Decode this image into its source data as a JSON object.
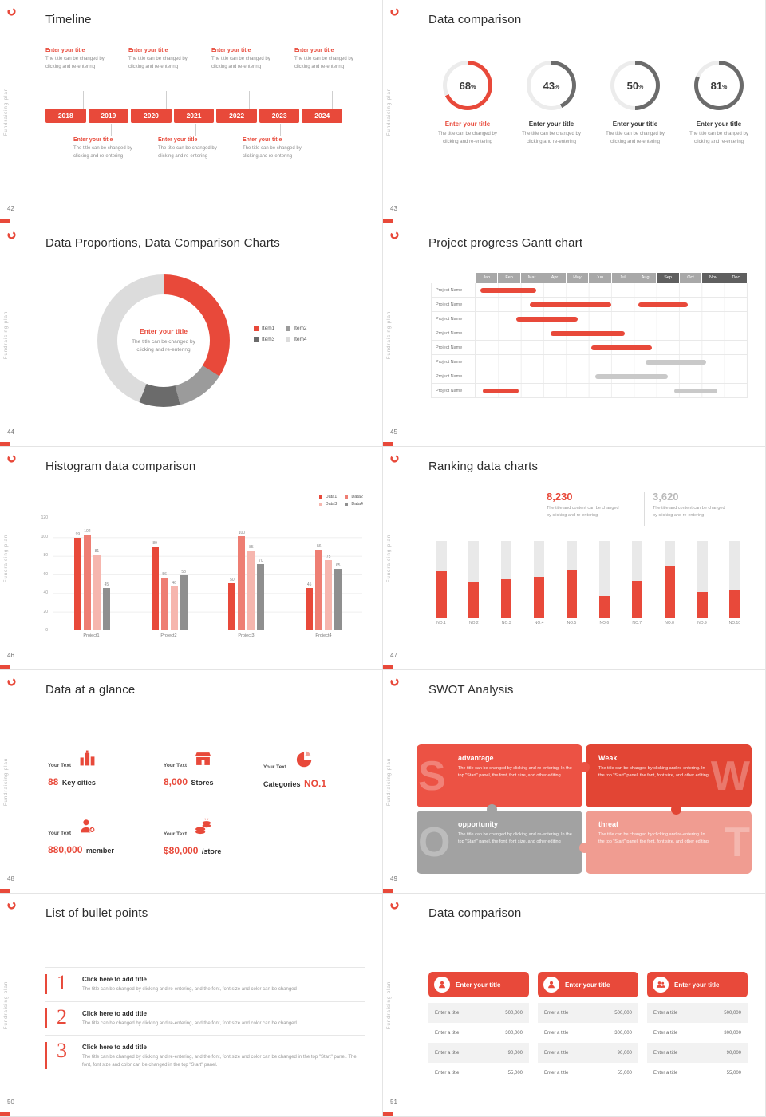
{
  "colors": {
    "red": "#e8493a",
    "gray_bar": "#c9c9c9",
    "gray_dark": "#6b6b6b"
  },
  "common": {
    "vertical_brand": "Fundraising plan",
    "entry_title": "Enter your title",
    "desc_l1": "The title can be changed by",
    "desc_l2": "clicking and re-entering"
  },
  "slides": {
    "timeline": {
      "page": "42",
      "title": "Timeline",
      "years": [
        "2018",
        "2019",
        "2020",
        "2021",
        "2022",
        "2023",
        "2024"
      ]
    },
    "rings": {
      "page": "43",
      "title": "Data comparison",
      "items": [
        {
          "value": "68",
          "unit": "%",
          "color": "#e8493a",
          "title_color": "#e8493a"
        },
        {
          "value": "43",
          "unit": "%",
          "color": "#6b6b6b",
          "title_color": "#333333"
        },
        {
          "value": "50",
          "unit": "%",
          "color": "#6b6b6b",
          "title_color": "#333333"
        },
        {
          "value": "81",
          "unit": "%",
          "color": "#6b6b6b",
          "title_color": "#333333"
        }
      ]
    },
    "donut": {
      "page": "44",
      "title": "Data Proportions, Data Comparison Charts",
      "segments": [
        {
          "label": "Item1",
          "color": "#e8493a",
          "value": 34
        },
        {
          "label": "Item2",
          "color": "#9b9b9b",
          "value": 12
        },
        {
          "label": "Item3",
          "color": "#6b6b6b",
          "value": 10
        },
        {
          "label": "Item4",
          "color": "#dcdcdc",
          "value": 44
        }
      ]
    },
    "gantt": {
      "page": "45",
      "title": "Project progress Gantt chart",
      "row_label": "Project Name",
      "months": [
        {
          "label": "Jan",
          "dark": false
        },
        {
          "label": "Feb",
          "dark": false
        },
        {
          "label": "Mar",
          "dark": false
        },
        {
          "label": "Apr",
          "dark": false
        },
        {
          "label": "May",
          "dark": false
        },
        {
          "label": "Jun",
          "dark": false
        },
        {
          "label": "Jul",
          "dark": false
        },
        {
          "label": "Aug",
          "dark": false
        },
        {
          "label": "Sep",
          "dark": true
        },
        {
          "label": "Oct",
          "dark": false
        },
        {
          "label": "Nov",
          "dark": true
        },
        {
          "label": "Dec",
          "dark": true
        }
      ],
      "rows": [
        {
          "bars": [
            {
              "start": 0.2,
              "end": 2.7,
              "color": "#e8493a"
            }
          ]
        },
        {
          "bars": [
            {
              "start": 2.4,
              "end": 6.0,
              "color": "#e8493a"
            },
            {
              "start": 7.2,
              "end": 9.4,
              "color": "#e8493a"
            }
          ]
        },
        {
          "bars": [
            {
              "start": 1.8,
              "end": 4.5,
              "color": "#e8493a"
            }
          ]
        },
        {
          "bars": [
            {
              "start": 3.3,
              "end": 6.6,
              "color": "#e8493a"
            }
          ]
        },
        {
          "bars": [
            {
              "start": 5.1,
              "end": 7.8,
              "color": "#e8493a"
            }
          ]
        },
        {
          "bars": [
            {
              "start": 7.5,
              "end": 10.2,
              "color": "#c9c9c9"
            }
          ]
        },
        {
          "bars": [
            {
              "start": 5.3,
              "end": 8.5,
              "color": "#c9c9c9"
            }
          ]
        },
        {
          "bars": [
            {
              "start": 0.3,
              "end": 1.9,
              "color": "#e8493a"
            },
            {
              "start": 8.8,
              "end": 10.7,
              "color": "#c9c9c9"
            }
          ]
        }
      ]
    },
    "histogram": {
      "page": "46",
      "title": "Histogram data comparison",
      "y_ticks": [
        "120",
        "100",
        "80",
        "60",
        "40",
        "20",
        "0"
      ],
      "y_max": 120,
      "legend": [
        {
          "label": "Data1",
          "color": "#e8493a"
        },
        {
          "label": "Data2",
          "color": "#ee7e73"
        },
        {
          "label": "Data3",
          "color": "#f6b6ae"
        },
        {
          "label": "Data4",
          "color": "#8f8f8f"
        }
      ],
      "groups": [
        {
          "label": "Project1",
          "values": [
            99,
            102,
            81,
            45
          ]
        },
        {
          "label": "Project2",
          "values": [
            89,
            56,
            46,
            58
          ]
        },
        {
          "label": "Project3",
          "values": [
            50,
            100,
            85,
            70
          ]
        },
        {
          "label": "Project4",
          "values": [
            45,
            86,
            75,
            65
          ]
        }
      ]
    },
    "ranking": {
      "page": "47",
      "title": "Ranking data charts",
      "stats": [
        {
          "value": "8,230",
          "color": "#e8493a",
          "d1": "The title and content can be changed",
          "d2": "by clicking and re-entering"
        },
        {
          "value": "3,620",
          "color": "#b9b9b9",
          "d1": "The title and content can be changed",
          "d2": "by clicking and re-entering"
        }
      ],
      "bars": [
        {
          "label": "NO.1",
          "value": 60
        },
        {
          "label": "NO.2",
          "value": 47
        },
        {
          "label": "NO.3",
          "value": 50
        },
        {
          "label": "NO.4",
          "value": 53
        },
        {
          "label": "NO.5",
          "value": 62
        },
        {
          "label": "NO.6",
          "value": 28
        },
        {
          "label": "NO.7",
          "value": 48
        },
        {
          "label": "NO.8",
          "value": 67
        },
        {
          "label": "NO.9",
          "value": 33
        },
        {
          "label": "NO.10",
          "value": 35
        }
      ]
    },
    "glance": {
      "page": "48",
      "title": "Data at a glance",
      "items": [
        {
          "label": "Your Text",
          "red": "88",
          "dark": "Key cities"
        },
        {
          "label": "Your Text",
          "red": "8,000",
          "dark": "Stores"
        },
        {
          "label": "Your Text",
          "dark": "Categories",
          "red": "NO.1"
        },
        {
          "label": "Your Text",
          "red": "880,000",
          "dark": "member"
        },
        {
          "label": "Your Text",
          "red": "$80,000",
          "dark": "/store"
        }
      ]
    },
    "swot": {
      "page": "49",
      "title": "SWOT Analysis",
      "desc": "The title can be changed by clicking and re-entering. In the top \"Start\" panel, the font, font size, and other editing",
      "pieces": [
        {
          "letter": "S",
          "title": "advantage",
          "color": "#ec5244"
        },
        {
          "letter": "W",
          "title": "Weak",
          "color": "#e24534"
        },
        {
          "letter": "O",
          "title": "opportunity",
          "color": "#a2a2a2"
        },
        {
          "letter": "T",
          "title": "threat",
          "color": "#f09c91"
        }
      ]
    },
    "bullets": {
      "page": "50",
      "title": "List of bullet points",
      "items": [
        {
          "num": "1",
          "title": "Click here to add title",
          "desc": "The title can be changed by clicking and re-entering, and the font, font size and color can be changed"
        },
        {
          "num": "2",
          "title": "Click here to add title",
          "desc": "The title can be changed by clicking and re-entering, and the font, font size and color can be changed"
        },
        {
          "num": "3",
          "title": "Click here to add title",
          "desc": "The title can be changed by clicking and re-entering, and the font, font size and color can be changed in the top \"Start\" panel. The font, font size and color can be changed in the top \"Start\" panel."
        }
      ]
    },
    "tables": {
      "page": "51",
      "title": "Data comparison",
      "card_header": "Enter your title",
      "row_label": "Enter a title",
      "values": [
        "500,000",
        "300,000",
        "90,000",
        "55,000"
      ]
    }
  }
}
